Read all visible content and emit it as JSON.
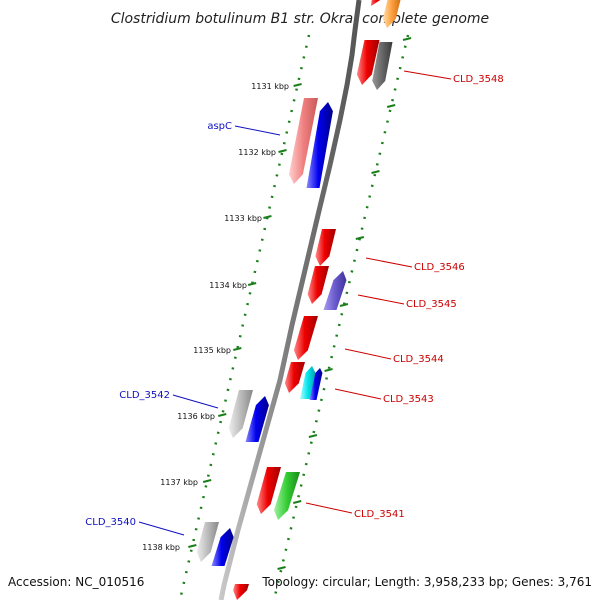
{
  "title": "Clostridium botulinum B1 str. Okra, complete genome",
  "footer": {
    "accession": "Accession: NC_010516",
    "summary": "Topology: circular; Length: 3,958,233 bp; Genes: 3,761"
  },
  "ticks": [
    "1131 kbp",
    "1132 kbp",
    "1133 kbp",
    "1134 kbp",
    "1135 kbp",
    "1136 kbp",
    "1137 kbp",
    "1138 kbp"
  ],
  "labels": {
    "left": [
      "aspC",
      "CLD_3542",
      "CLD_3540"
    ],
    "right": [
      "CLD_3548",
      "CLD_3546",
      "CLD_3545",
      "CLD_3544",
      "CLD_3543",
      "CLD_3541"
    ]
  },
  "colors": {
    "backbone": "#7a7a7a",
    "dotted_track": "#1a7f1a",
    "left_label": "#1010c0",
    "right_label": "#cc0000",
    "red": "#ee0000",
    "blue": "#0000ee",
    "pink": "#f08080",
    "gray": "#bbbbbb",
    "darkgray": "#666666",
    "purple": "#6a5acd",
    "cyan": "#00e5ee",
    "green": "#33cc33",
    "orange": "#ffa040"
  }
}
